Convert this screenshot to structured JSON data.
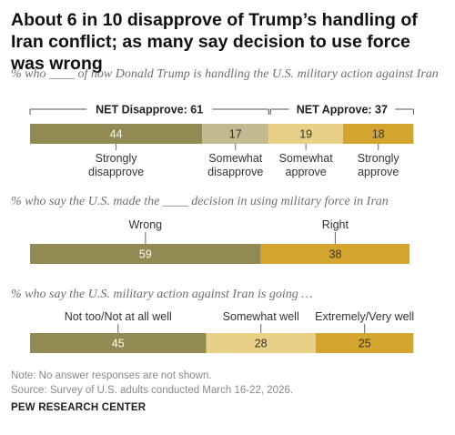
{
  "title": "About 6 in 10 disapprove of Trump’s handling of Iran conflict; as many say decision to use force was wrong",
  "colors": {
    "strong_neg": "#918a53",
    "mild_neg": "#c2b98f",
    "mild_pos": "#e8d086",
    "strong_pos": "#d3a42e"
  },
  "chart_data": [
    {
      "type": "bar",
      "subtitle": "% who ____ of how Donald Trump is handling the U.S. military action against Iran",
      "categories": [
        "Strongly disapprove",
        "Somewhat disapprove",
        "Somewhat approve",
        "Strongly approve"
      ],
      "values": [
        44,
        17,
        19,
        18
      ],
      "nets": [
        {
          "label": "NET Disapprove: 61",
          "value": 61
        },
        {
          "label": "NET Approve: 37",
          "value": 37
        }
      ]
    },
    {
      "type": "bar",
      "subtitle": "% who say the U.S. made the ____ decision in using military force in Iran",
      "categories": [
        "Wrong",
        "Right"
      ],
      "values": [
        59,
        38
      ]
    },
    {
      "type": "bar",
      "subtitle": "% who say the U.S. military action against Iran is going …",
      "categories": [
        "Not too/Not at all well",
        "Somewhat well",
        "Extremely/Very well"
      ],
      "values": [
        45,
        28,
        25
      ]
    }
  ],
  "notes": {
    "note": "Note: No answer responses are not shown.",
    "source": "Source: Survey of U.S. adults conducted March 16-22, 2026."
  },
  "brand": "PEW RESEARCH CENTER"
}
